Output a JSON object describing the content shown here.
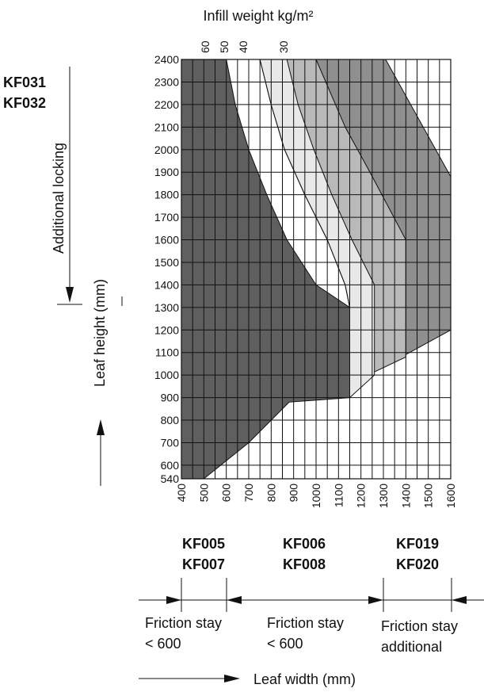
{
  "chart_data": {
    "type": "area",
    "title": "Infill weight kg/m²",
    "xlabel": "Leaf width (mm)",
    "ylabel": "Leaf height (mm)",
    "xlim": [
      400,
      1600
    ],
    "ylim": [
      540,
      2400
    ],
    "x_ticks": [
      400,
      500,
      600,
      700,
      800,
      900,
      1000,
      1100,
      1200,
      1300,
      1400,
      1500,
      1600
    ],
    "y_ticks": [
      540,
      600,
      700,
      800,
      900,
      1000,
      1100,
      1200,
      1300,
      1400,
      1500,
      1600,
      1700,
      1800,
      1900,
      2000,
      2100,
      2200,
      2300,
      2400
    ],
    "grid": true,
    "weight_ticks": [
      {
        "label": "60",
        "x": 505
      },
      {
        "label": "50",
        "x": 590
      },
      {
        "label": "40",
        "x": 675
      },
      {
        "label": "30",
        "x": 855
      }
    ],
    "regions": [
      {
        "weight": "30",
        "color": "#8f8f8f",
        "points": [
          [
            750,
            2400
          ],
          [
            1310,
            2400
          ],
          [
            1600,
            1880
          ],
          [
            1600,
            1200
          ],
          [
            1380,
            1080
          ],
          [
            1230,
            1000
          ],
          [
            1150,
            900
          ],
          [
            1150,
            1300
          ],
          [
            1130,
            1400
          ],
          [
            1050,
            1600
          ],
          [
            950,
            1800
          ],
          [
            860,
            2000
          ],
          [
            800,
            2200
          ],
          [
            750,
            2400
          ]
        ]
      },
      {
        "weight": "40",
        "color": "#b9b9b9",
        "points": [
          [
            750,
            2400
          ],
          [
            1000,
            2400
          ],
          [
            1130,
            2100
          ],
          [
            1240,
            1900
          ],
          [
            1400,
            1600
          ],
          [
            1400,
            1080
          ],
          [
            1230,
            1000
          ],
          [
            1150,
            900
          ],
          [
            1150,
            1300
          ],
          [
            1130,
            1400
          ],
          [
            1050,
            1600
          ],
          [
            950,
            1800
          ],
          [
            860,
            2000
          ],
          [
            800,
            2200
          ],
          [
            750,
            2400
          ]
        ]
      },
      {
        "weight": "50",
        "color": "#e8e8e8",
        "points": [
          [
            750,
            2400
          ],
          [
            870,
            2400
          ],
          [
            920,
            2200
          ],
          [
            990,
            2000
          ],
          [
            1070,
            1800
          ],
          [
            1160,
            1600
          ],
          [
            1260,
            1400
          ],
          [
            1260,
            1000
          ],
          [
            1150,
            900
          ],
          [
            1150,
            1300
          ],
          [
            1130,
            1400
          ],
          [
            1050,
            1600
          ],
          [
            950,
            1800
          ],
          [
            860,
            2000
          ],
          [
            800,
            2200
          ],
          [
            750,
            2400
          ]
        ]
      },
      {
        "weight": "60",
        "color": "#5f5f5f",
        "points": [
          [
            400,
            540
          ],
          [
            400,
            2400
          ],
          [
            600,
            2400
          ],
          [
            640,
            2200
          ],
          [
            700,
            2000
          ],
          [
            780,
            1800
          ],
          [
            870,
            1600
          ],
          [
            1000,
            1400
          ],
          [
            1150,
            1300
          ],
          [
            1150,
            900
          ],
          [
            880,
            880
          ],
          [
            700,
            700
          ],
          [
            500,
            540
          ],
          [
            400,
            540
          ]
        ]
      }
    ],
    "annotations": [
      {
        "text_lines": [
          "KF031",
          "KF032"
        ]
      },
      {
        "text": "Additional locking"
      },
      {
        "text_lines": [
          "KF005",
          "KF007"
        ]
      },
      {
        "text_lines": [
          "KF006",
          "KF008"
        ]
      },
      {
        "text_lines": [
          "KF019",
          "KF020"
        ]
      },
      {
        "text_lines": [
          "Friction stay",
          "< 600"
        ]
      },
      {
        "text_lines": [
          "Friction stay",
          "< 600"
        ]
      },
      {
        "text_lines": [
          "Friction stay",
          "additional"
        ]
      }
    ]
  },
  "labels": {
    "title": "Infill weight kg/m²",
    "kf031": "KF031",
    "kf032": "KF032",
    "additional_locking": "Additional locking",
    "leaf_height": "Leaf height (mm)",
    "leaf_width": "Leaf width (mm)",
    "kf005": "KF005",
    "kf007": "KF007",
    "kf006": "KF006",
    "kf008": "KF008",
    "kf019": "KF019",
    "kf020": "KF020",
    "stay1_line1": "Friction stay",
    "stay1_line2": "< 600",
    "stay2_line1": "Friction stay",
    "stay2_line2": "< 600",
    "stay3_line1": "Friction stay",
    "stay3_line2": "additional"
  }
}
